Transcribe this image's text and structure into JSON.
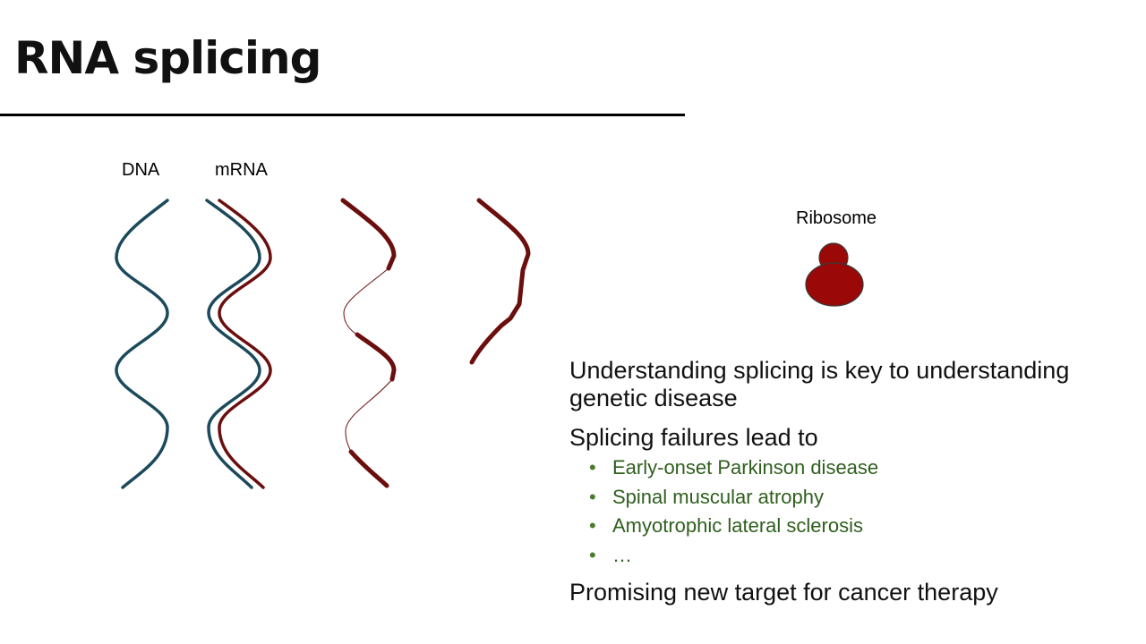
{
  "title": "RNA splicing",
  "diagram": {
    "labels": {
      "dna": "DNA",
      "mrna": "mRNA",
      "ribosome": "Ribosome"
    },
    "colors": {
      "dna_strand": "#1c4a5c",
      "rna_strand": "#6b0e0e",
      "ribosome_fill": "#9b0808",
      "ribosome_outline": "#3a3a3a"
    }
  },
  "text": {
    "point1": "Understanding splicing is key to understanding genetic disease",
    "point2": "Splicing failures lead to",
    "bullets": [
      "Early-onset Parkinson disease",
      "Spinal muscular atrophy",
      "Amyotrophic lateral sclerosis",
      "…"
    ],
    "bullet_marker": "•",
    "bullet_color": "#2f5f1e",
    "point3": "Promising new target for cancer therapy"
  }
}
